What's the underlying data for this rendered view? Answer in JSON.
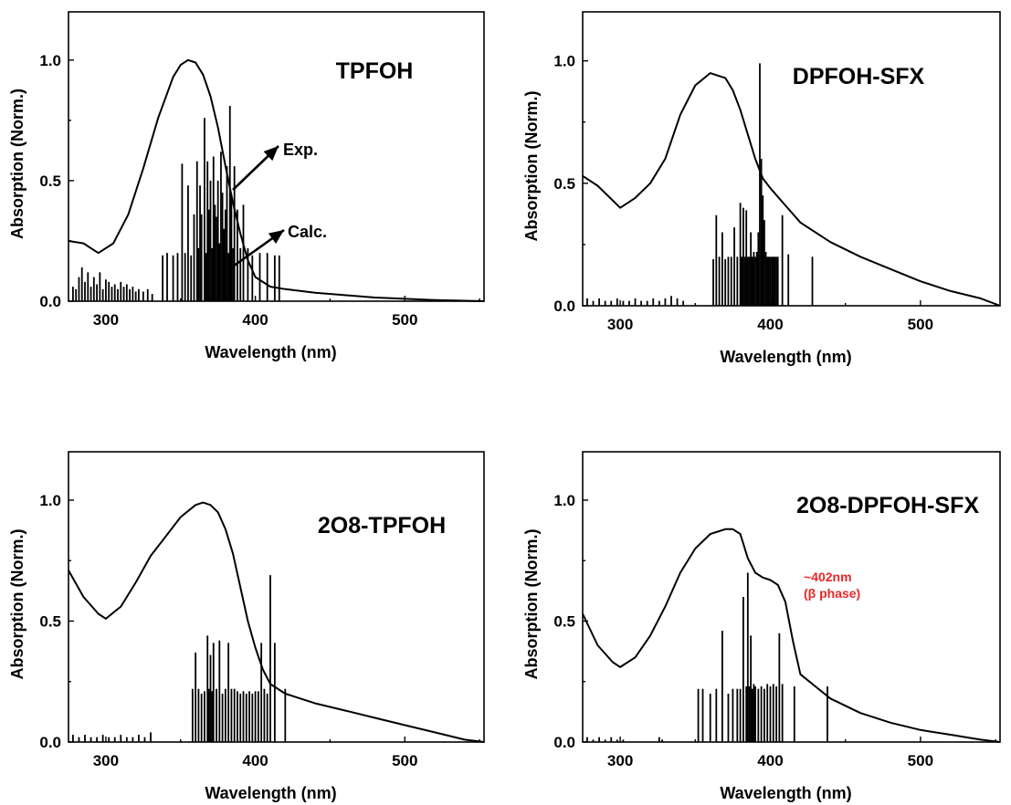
{
  "chart_data": [
    {
      "type": "line",
      "title": "TPFOH",
      "xlabel": "Wavelength (nm)",
      "ylabel": "Absorption (Norm.)",
      "xlim": [
        275,
        553
      ],
      "ylim": [
        0,
        1.2
      ],
      "xticks": [
        300,
        400,
        500
      ],
      "xtick_labels": [
        "300",
        "400",
        "500"
      ],
      "yticks": [
        0.0,
        0.5,
        1.0
      ],
      "ytick_labels": [
        "0.0",
        "0.5",
        "1.0"
      ],
      "series": [
        {
          "kind": "curve",
          "x": [
            275,
            285,
            295,
            305,
            315,
            325,
            335,
            345,
            350,
            355,
            360,
            365,
            370,
            375,
            380,
            385,
            390,
            395,
            400,
            410,
            420,
            440,
            460,
            480,
            500,
            520,
            553
          ],
          "y": [
            0.25,
            0.24,
            0.2,
            0.24,
            0.36,
            0.55,
            0.76,
            0.93,
            0.98,
            1.0,
            0.99,
            0.94,
            0.85,
            0.72,
            0.56,
            0.41,
            0.28,
            0.17,
            0.1,
            0.06,
            0.05,
            0.035,
            0.025,
            0.015,
            0.01,
            0.005,
            0.0
          ]
        },
        {
          "kind": "sticks",
          "x": [
            278,
            280,
            282,
            284,
            286,
            288,
            290,
            292,
            294,
            296,
            298,
            300,
            302,
            304,
            306,
            308,
            310,
            312,
            314,
            316,
            318,
            320,
            322,
            325,
            328,
            331,
            338,
            341,
            345,
            348,
            351,
            353,
            355,
            357,
            359,
            361,
            362,
            363,
            364,
            366,
            367,
            368,
            369,
            370,
            371,
            372,
            373,
            374,
            375,
            376,
            377,
            378,
            379,
            380,
            381,
            382,
            383,
            384,
            385,
            386,
            388,
            390,
            392,
            395,
            398,
            403,
            408,
            413,
            416
          ],
          "y": [
            0.06,
            0.05,
            0.1,
            0.14,
            0.08,
            0.12,
            0.06,
            0.1,
            0.07,
            0.12,
            0.05,
            0.09,
            0.08,
            0.06,
            0.07,
            0.05,
            0.08,
            0.06,
            0.07,
            0.05,
            0.06,
            0.04,
            0.05,
            0.04,
            0.05,
            0.03,
            0.19,
            0.2,
            0.19,
            0.2,
            0.57,
            0.2,
            0.48,
            0.19,
            0.36,
            0.58,
            0.22,
            0.48,
            0.36,
            0.76,
            0.2,
            0.58,
            0.38,
            0.5,
            0.22,
            0.6,
            0.4,
            0.35,
            0.5,
            0.24,
            0.62,
            0.45,
            0.3,
            0.38,
            0.56,
            0.2,
            0.81,
            0.44,
            0.22,
            0.56,
            0.38,
            0.22,
            0.4,
            0.22,
            0.19,
            0.2,
            0.2,
            0.19,
            0.19
          ]
        }
      ],
      "annotations": [
        {
          "text": "Exp.",
          "x": 392,
          "y": 0.63
        },
        {
          "text": "Calc.",
          "x": 392,
          "y": 0.33
        }
      ]
    },
    {
      "type": "line",
      "title": "DPFOH-SFX",
      "xlabel": "Wavelength (nm)",
      "ylabel": "Absorption (Norm.)",
      "xlim": [
        275,
        553
      ],
      "ylim": [
        0,
        1.2
      ],
      "xticks": [
        300,
        400,
        500
      ],
      "xtick_labels": [
        "300",
        "400",
        "500"
      ],
      "yticks": [
        0.0,
        0.5,
        1.0
      ],
      "ytick_labels": [
        "0.0",
        "0.5",
        "1.0"
      ],
      "series": [
        {
          "kind": "curve",
          "x": [
            275,
            285,
            295,
            300,
            310,
            320,
            330,
            340,
            350,
            360,
            365,
            370,
            375,
            380,
            385,
            390,
            395,
            400,
            410,
            420,
            440,
            460,
            480,
            500,
            520,
            540,
            553
          ],
          "y": [
            0.53,
            0.49,
            0.43,
            0.4,
            0.44,
            0.5,
            0.6,
            0.78,
            0.9,
            0.95,
            0.94,
            0.93,
            0.88,
            0.8,
            0.7,
            0.6,
            0.52,
            0.48,
            0.41,
            0.34,
            0.26,
            0.2,
            0.15,
            0.1,
            0.06,
            0.03,
            0.0
          ]
        },
        {
          "kind": "sticks",
          "x": [
            278,
            282,
            286,
            290,
            294,
            298,
            302,
            306,
            310,
            314,
            318,
            322,
            326,
            330,
            334,
            338,
            342,
            362,
            364,
            366,
            368,
            370,
            372,
            374,
            376,
            378,
            380,
            381,
            382,
            383,
            384,
            385,
            386,
            387,
            388,
            389,
            390,
            391,
            392,
            393,
            394,
            395,
            396,
            397,
            398,
            399,
            400,
            401,
            402,
            403,
            404,
            405,
            408,
            412,
            428
          ],
          "y": [
            0.03,
            0.02,
            0.03,
            0.02,
            0.02,
            0.03,
            0.02,
            0.02,
            0.03,
            0.02,
            0.02,
            0.03,
            0.02,
            0.03,
            0.04,
            0.03,
            0.02,
            0.19,
            0.37,
            0.2,
            0.3,
            0.19,
            0.2,
            0.2,
            0.32,
            0.2,
            0.42,
            0.2,
            0.4,
            0.2,
            0.39,
            0.2,
            0.2,
            0.3,
            0.2,
            0.22,
            0.2,
            0.22,
            0.3,
            0.99,
            0.6,
            0.45,
            0.35,
            0.22,
            0.2,
            0.2,
            0.2,
            0.2,
            0.2,
            0.2,
            0.2,
            0.2,
            0.37,
            0.21,
            0.2
          ]
        }
      ]
    },
    {
      "type": "line",
      "title": "2O8-TPFOH",
      "xlabel": "Wavelength (nm)",
      "ylabel": "Absorption (Norm.)",
      "xlim": [
        275,
        553
      ],
      "ylim": [
        0,
        1.2
      ],
      "xticks": [
        300,
        400,
        500
      ],
      "xtick_labels": [
        "300",
        "400",
        "500"
      ],
      "yticks": [
        0.0,
        0.5,
        1.0
      ],
      "ytick_labels": [
        "0.0",
        "0.5",
        "1.0"
      ],
      "series": [
        {
          "kind": "curve",
          "x": [
            275,
            285,
            295,
            300,
            310,
            320,
            330,
            340,
            350,
            360,
            365,
            370,
            375,
            380,
            385,
            390,
            395,
            400,
            405,
            410,
            420,
            440,
            460,
            480,
            500,
            520,
            540,
            553
          ],
          "y": [
            0.71,
            0.6,
            0.53,
            0.51,
            0.56,
            0.66,
            0.77,
            0.85,
            0.93,
            0.98,
            0.99,
            0.98,
            0.95,
            0.88,
            0.78,
            0.64,
            0.5,
            0.39,
            0.3,
            0.24,
            0.2,
            0.16,
            0.13,
            0.1,
            0.07,
            0.04,
            0.01,
            0.0
          ]
        },
        {
          "kind": "sticks",
          "x": [
            278,
            282,
            286,
            290,
            294,
            298,
            302,
            306,
            310,
            314,
            318,
            322,
            326,
            330,
            358,
            360,
            362,
            364,
            366,
            368,
            369,
            370,
            371,
            372,
            374,
            376,
            378,
            380,
            382,
            384,
            386,
            388,
            390,
            392,
            394,
            396,
            398,
            400,
            402,
            404,
            406,
            408,
            410,
            413,
            420
          ],
          "y": [
            0.03,
            0.02,
            0.03,
            0.02,
            0.02,
            0.03,
            0.02,
            0.02,
            0.03,
            0.02,
            0.02,
            0.03,
            0.02,
            0.04,
            0.22,
            0.37,
            0.22,
            0.2,
            0.21,
            0.44,
            0.22,
            0.36,
            0.21,
            0.41,
            0.22,
            0.42,
            0.2,
            0.22,
            0.41,
            0.22,
            0.22,
            0.21,
            0.2,
            0.21,
            0.2,
            0.21,
            0.2,
            0.21,
            0.21,
            0.41,
            0.22,
            0.2,
            0.69,
            0.41,
            0.22
          ]
        }
      ]
    },
    {
      "type": "line",
      "title": "2O8-DPFOH-SFX",
      "xlabel": "Wavelength (nm)",
      "ylabel": "Absorption (Norm.)",
      "xlim": [
        275,
        553
      ],
      "ylim": [
        0,
        1.2
      ],
      "xticks": [
        300,
        400,
        500
      ],
      "xtick_labels": [
        "300",
        "400",
        "500"
      ],
      "yticks": [
        0.0,
        0.5,
        1.0
      ],
      "ytick_labels": [
        "0.0",
        "0.5",
        "1.0"
      ],
      "series": [
        {
          "kind": "curve",
          "x": [
            275,
            285,
            295,
            300,
            310,
            320,
            330,
            340,
            350,
            360,
            365,
            370,
            375,
            380,
            385,
            390,
            395,
            400,
            405,
            410,
            415,
            420,
            440,
            460,
            480,
            500,
            520,
            540,
            553
          ],
          "y": [
            0.53,
            0.4,
            0.33,
            0.31,
            0.35,
            0.44,
            0.56,
            0.7,
            0.8,
            0.86,
            0.87,
            0.88,
            0.88,
            0.86,
            0.76,
            0.7,
            0.68,
            0.67,
            0.65,
            0.58,
            0.42,
            0.28,
            0.18,
            0.12,
            0.08,
            0.05,
            0.03,
            0.01,
            0.0
          ]
        },
        {
          "kind": "sticks",
          "x": [
            278,
            282,
            286,
            290,
            294,
            298,
            302,
            326,
            328,
            352,
            355,
            360,
            364,
            368,
            372,
            375,
            378,
            380,
            382,
            384,
            385,
            386,
            387,
            388,
            389,
            390,
            392,
            394,
            396,
            398,
            400,
            402,
            404,
            406,
            408,
            416,
            438
          ],
          "y": [
            0.02,
            0.01,
            0.02,
            0.01,
            0.02,
            0.01,
            0.01,
            0.02,
            0.01,
            0.22,
            0.22,
            0.2,
            0.22,
            0.46,
            0.2,
            0.22,
            0.22,
            0.22,
            0.6,
            0.23,
            0.7,
            0.23,
            0.44,
            0.22,
            0.24,
            0.23,
            0.22,
            0.23,
            0.22,
            0.24,
            0.23,
            0.24,
            0.23,
            0.45,
            0.24,
            0.23,
            0.23
          ]
        }
      ],
      "annotations": [
        {
          "text": "~402nm",
          "x": 412,
          "y": 0.67
        },
        {
          "text": "(β phase)",
          "x": 412,
          "y": 0.62
        }
      ]
    }
  ]
}
